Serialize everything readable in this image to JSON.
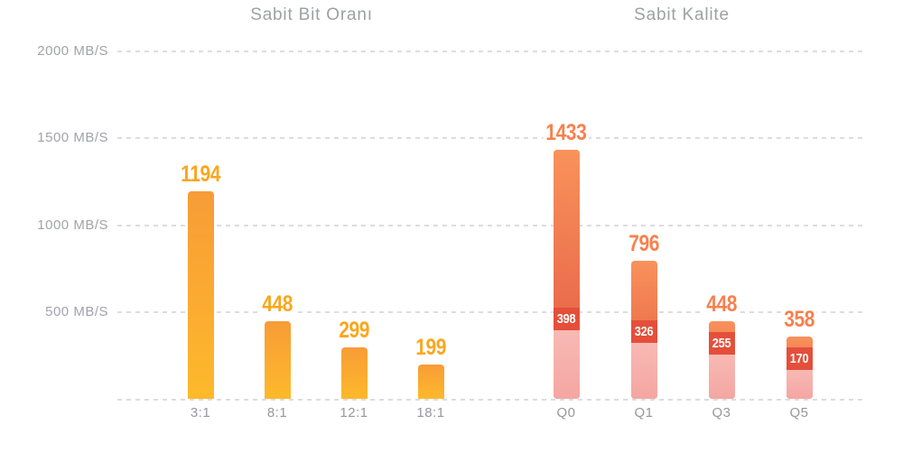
{
  "chart_data": {
    "type": "bar",
    "unit": "MB/S",
    "background": "#ffffff",
    "y_axis": {
      "min": 0,
      "max": 2000,
      "ticks": [
        500,
        1000,
        1500,
        2000
      ],
      "tick_labels": [
        "500 MB/S",
        "1000 MB/S",
        "1500 MB/S",
        "2000 MB/S"
      ],
      "grid": "dashed",
      "baseline_grid": true
    },
    "groups": [
      {
        "title": "Sabit Bit Oranı",
        "style": "orange",
        "categories": [
          "3:1",
          "8:1",
          "12:1",
          "18:1"
        ],
        "bars": [
          {
            "category": "3:1",
            "value": 1194
          },
          {
            "category": "8:1",
            "value": 448
          },
          {
            "category": "12:1",
            "value": 299
          },
          {
            "category": "18:1",
            "value": 199
          }
        ]
      },
      {
        "title": "Sabit Kalite",
        "style": "coral",
        "categories": [
          "Q0",
          "Q1",
          "Q3",
          "Q5"
        ],
        "bars": [
          {
            "category": "Q0",
            "value": 1433,
            "inner_value": 398
          },
          {
            "category": "Q1",
            "value": 796,
            "inner_value": 326
          },
          {
            "category": "Q3",
            "value": 448,
            "inner_value": 255
          },
          {
            "category": "Q5",
            "value": 358,
            "inner_value": 170
          }
        ]
      }
    ],
    "colors": {
      "orange_bar_top": "#f89c37",
      "orange_bar_bottom": "#fdb92b",
      "orange_label": "#faa61d",
      "coral_bar_top": "#f9925b",
      "coral_bar_bottom": "#e15742",
      "coral_label": "#f8804d",
      "inner_chip": "#e44f3a",
      "inner_chip_text": "#ffffff",
      "pink_overlay": "#f4a6a2",
      "gridline": "#dcdce1",
      "axis_text": "#a2a3aa",
      "title_text": "#9ea0a6",
      "category_text": "#97979f"
    }
  }
}
